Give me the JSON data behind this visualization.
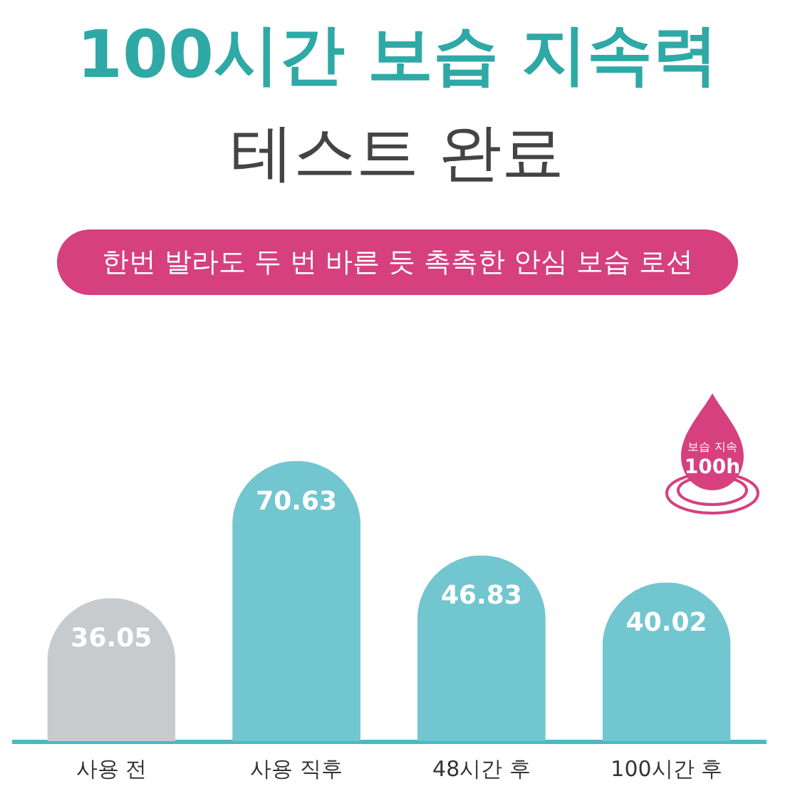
{
  "chart_data": {
    "type": "bar",
    "title": "100시간 보습 지속력",
    "subtitle": "테스트 완료",
    "annotations": [
      "한번 발라도 두 번 바른 듯 촉촉한 안심 보습 로션",
      "보습 지속",
      "100h"
    ],
    "categories": [
      "사용 전",
      "사용 직후",
      "48시간 후",
      "100시간 후"
    ],
    "values": [
      36.05,
      70.63,
      46.83,
      40.02
    ],
    "colors": [
      "#c7cbcd",
      "#72c6cf",
      "#72c6cf",
      "#72c6cf"
    ],
    "ylim": [
      0,
      97
    ],
    "data_labels": true,
    "tick_labels": "x"
  }
}
